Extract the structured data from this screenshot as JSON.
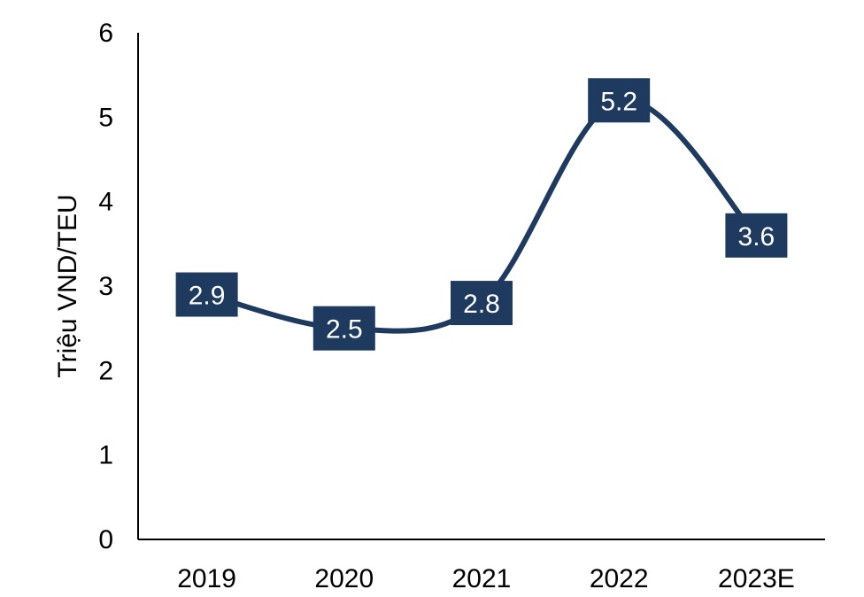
{
  "chart_data": {
    "type": "line",
    "categories": [
      "2019",
      "2020",
      "2021",
      "2022",
      "2023E"
    ],
    "values": [
      2.9,
      2.5,
      2.8,
      5.2,
      3.6
    ],
    "value_labels": [
      "2.9",
      "2.5",
      "2.8",
      "5.2",
      "3.6"
    ],
    "title": "",
    "xlabel": "",
    "ylabel": "Triệu VND/TEU",
    "ylim": [
      0,
      6
    ],
    "yticks": [
      "0",
      "1",
      "2",
      "3",
      "4",
      "5",
      "6"
    ],
    "smooth": true,
    "grid": false,
    "legend": "none",
    "colors": {
      "line": "#1f3a5f",
      "label_bg": "#1f3a5f",
      "label_text": "#ffffff",
      "axis": "#000000"
    }
  }
}
